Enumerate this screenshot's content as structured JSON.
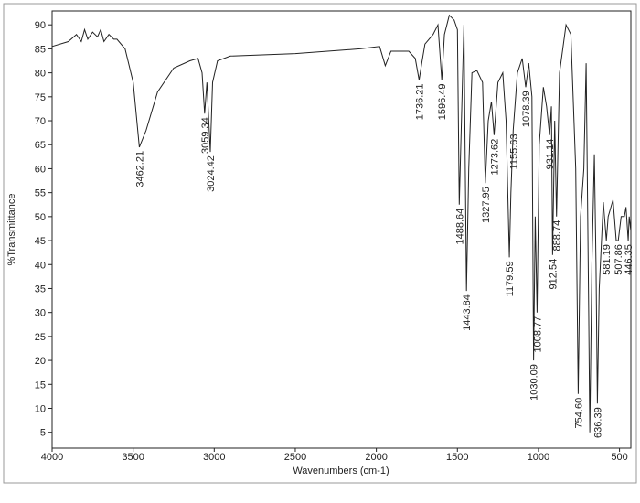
{
  "chart_data": {
    "type": "line",
    "xlabel": "Wavenumbers (cm-1)",
    "ylabel": "%Transmittance",
    "xlim": [
      4000,
      430
    ],
    "ylim": [
      1.7,
      92.9
    ],
    "xticks": [
      4000,
      3500,
      3000,
      2500,
      2000,
      1500,
      1000,
      500
    ],
    "yticks": [
      5,
      10,
      15,
      20,
      25,
      30,
      35,
      40,
      45,
      50,
      55,
      60,
      65,
      70,
      75,
      80,
      85,
      90
    ],
    "color": "#222222",
    "x": [
      4000,
      3900,
      3850,
      3820,
      3800,
      3780,
      3750,
      3720,
      3700,
      3680,
      3650,
      3620,
      3600,
      3550,
      3500,
      3462.21,
      3420,
      3350,
      3250,
      3150,
      3100,
      3075,
      3059.34,
      3045,
      3024.42,
      3010,
      2980,
      2900,
      2500,
      2100,
      1980,
      1945,
      1910,
      1800,
      1760,
      1736.21,
      1720,
      1700,
      1650,
      1620,
      1596.49,
      1580,
      1550,
      1520,
      1500,
      1488.64,
      1475,
      1460,
      1443.84,
      1430,
      1410,
      1380,
      1345,
      1327.95,
      1310,
      1290,
      1273.62,
      1250,
      1220,
      1200,
      1179.59,
      1170,
      1155.63,
      1130,
      1100,
      1078.39,
      1060,
      1040,
      1030.09,
      1020,
      1008.77,
      995,
      970,
      950,
      931.14,
      920,
      912.54,
      900,
      888.74,
      870,
      830,
      800,
      770,
      754.6,
      740,
      720,
      706,
      690,
      683,
      670,
      655,
      645,
      636.39,
      625,
      600,
      581.19,
      570,
      540,
      520,
      507.86,
      490,
      470,
      460,
      446.35,
      440,
      430
    ],
    "values": [
      85.5,
      86.5,
      88,
      86.5,
      89,
      87,
      88.5,
      87.5,
      89,
      86.5,
      88,
      87,
      87,
      85,
      78,
      64.5,
      68,
      76,
      81,
      82.5,
      83,
      80,
      71.5,
      78,
      63.5,
      78,
      82.5,
      83.5,
      84,
      85,
      85.5,
      81.5,
      84.5,
      84.5,
      83,
      78.5,
      82,
      86,
      88,
      90,
      78.5,
      88,
      92,
      91,
      89,
      52.5,
      70,
      90,
      34.5,
      60,
      80,
      80.5,
      78,
      57,
      70,
      74,
      67,
      78,
      80,
      70,
      41.5,
      55,
      68,
      80,
      83,
      77,
      82,
      75,
      20,
      50,
      30,
      65,
      77,
      73,
      67,
      73,
      42,
      70,
      50,
      80,
      90,
      88,
      60,
      13,
      50,
      60,
      82,
      30,
      5,
      40,
      63,
      40,
      11,
      35,
      53,
      45,
      50,
      53.5,
      45,
      45,
      50,
      50,
      52,
      45,
      50,
      47
    ],
    "peak_labels": [
      3462.21,
      3059.34,
      3024.42,
      1736.21,
      1596.49,
      1488.64,
      1443.84,
      1327.95,
      1273.62,
      1179.59,
      1155.63,
      1078.39,
      1030.09,
      1008.77,
      931.14,
      912.54,
      888.74,
      {
        "value": 754.6,
        "label": "754.60"
      },
      636.39,
      581.19,
      507.86,
      446.35
    ]
  }
}
